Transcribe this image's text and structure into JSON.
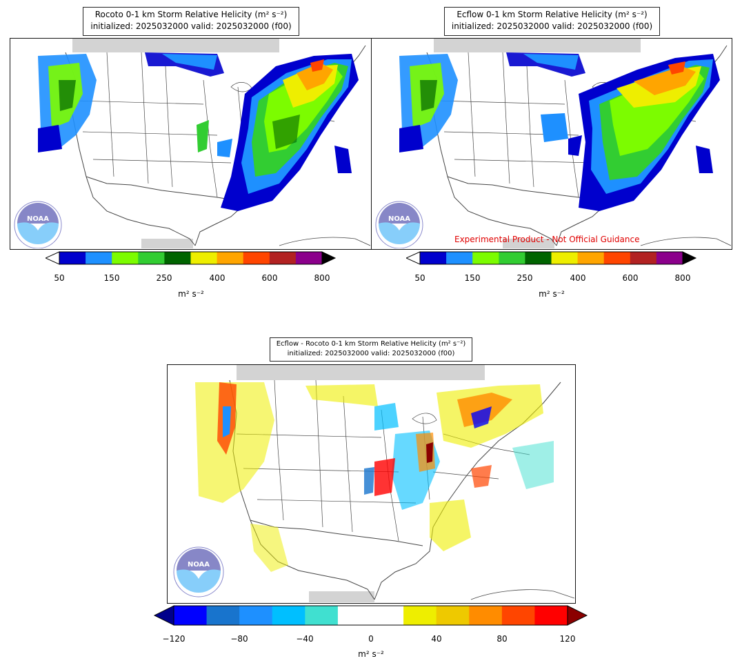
{
  "panels": {
    "rocoto": {
      "title_line1": "Rocoto 0-1 km Storm Relative Helicity (m² s⁻²)",
      "title_line2": "initialized: 2025032000 valid: 2025032000 (f00)"
    },
    "ecflow": {
      "title_line1": "Ecflow 0-1 km Storm Relative Helicity (m² s⁻²)",
      "title_line2": "initialized: 2025032000 valid: 2025032000 (f00)",
      "disclaimer": "Experimental Product - Not Official Guidance"
    },
    "diff": {
      "title_line1": "Ecflow - Rocoto 0-1 km Storm Relative Helicity (m² s⁻²)",
      "title_line2": "initialized: 2025032000 valid: 2025032000 (f00)"
    }
  },
  "colorbars": {
    "srh": {
      "units": "m² s⁻²",
      "ticks": [
        "50",
        "150",
        "250",
        "400",
        "600",
        "800"
      ],
      "colors": [
        "#0000cd",
        "#1e90ff",
        "#7cfc00",
        "#32cd32",
        "#006400",
        "#eeee00",
        "#ffa500",
        "#ff4500",
        "#b22222",
        "#8b008b"
      ]
    },
    "diff": {
      "units": "m² s⁻²",
      "ticks": [
        "−120",
        "−80",
        "−40",
        "0",
        "40",
        "80",
        "120"
      ],
      "colors": [
        "#0000ff",
        "#1874cd",
        "#1e90ff",
        "#00bfff",
        "#40e0d0",
        "#ffffff",
        "#ffffff",
        "#eeee00",
        "#eec900",
        "#ff8c00",
        "#ff4500",
        "#ff0000"
      ],
      "extend_min_color": "#00008b",
      "extend_max_color": "#8b0000"
    }
  },
  "logo": {
    "icon": "noaa-logo-icon",
    "text": "NOAA"
  }
}
